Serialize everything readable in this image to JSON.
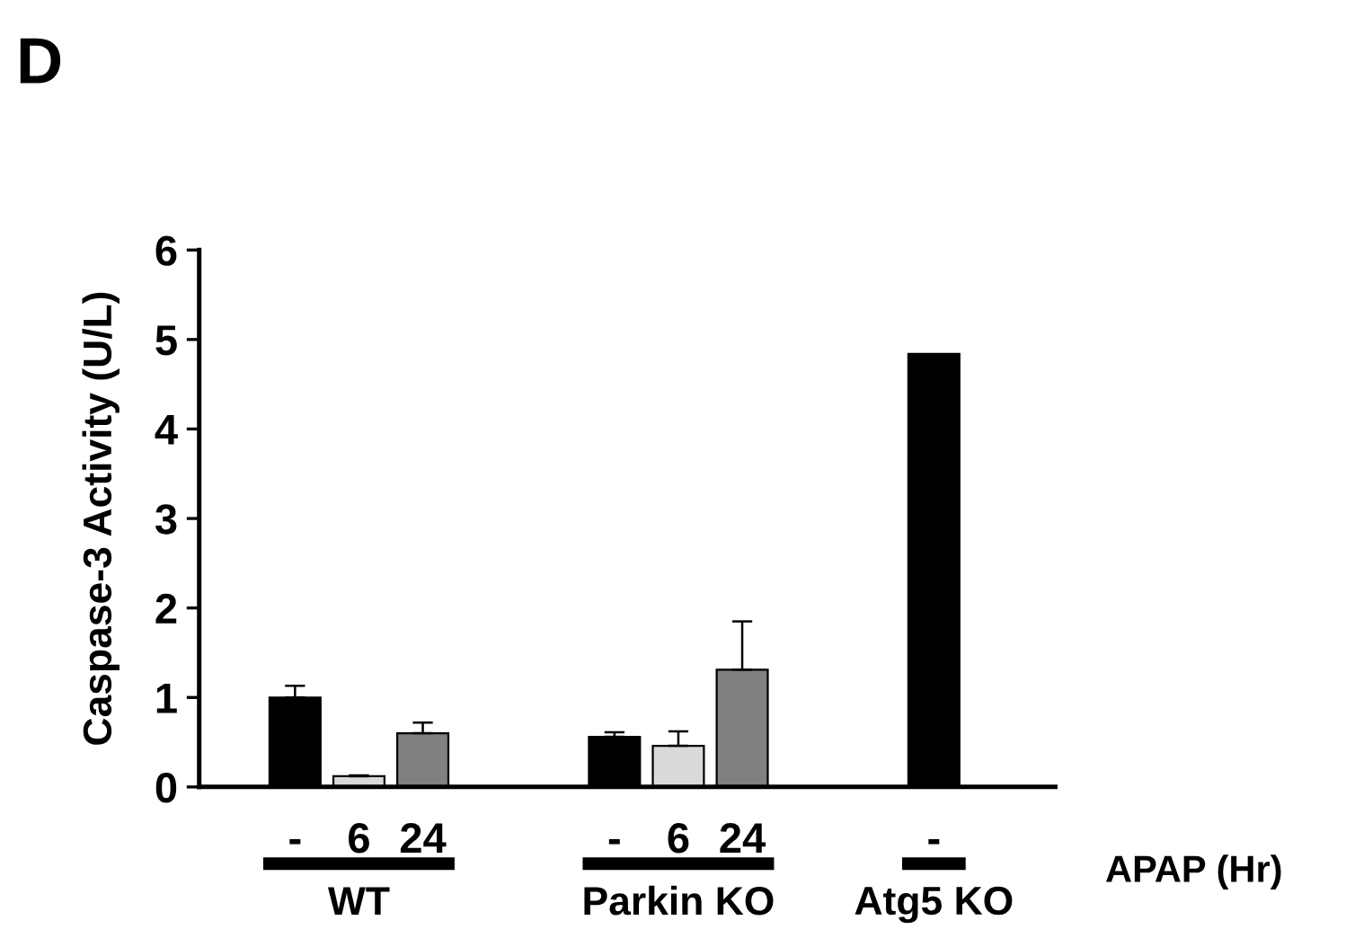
{
  "chart_data": {
    "type": "bar",
    "title": "D",
    "ylabel": "Caspase-3 Activity (U/L)",
    "xlabel": "APAP (Hr)",
    "categories": [
      "-",
      "6",
      "24",
      null,
      null,
      "-",
      "6",
      "24",
      null,
      null,
      "-"
    ],
    "values": [
      1.0,
      0.12,
      0.6,
      null,
      null,
      0.56,
      0.46,
      1.31,
      null,
      null,
      4.84
    ],
    "colors": [
      "#000000",
      "#d9d9d9",
      "#808080",
      null,
      null,
      "#000000",
      "#d9d9d9",
      "#808080",
      null,
      null,
      "#000000"
    ],
    "errors": [
      [
        1.0,
        1.13
      ],
      [
        0.12,
        0.13
      ],
      [
        0.6,
        0.72
      ],
      null,
      null,
      [
        0.56,
        0.61
      ],
      [
        0.46,
        0.62
      ],
      [
        1.31,
        1.85
      ],
      null,
      null,
      null
    ],
    "annotations": [
      "WT",
      "Parkin KO",
      "Atg5 KO"
    ],
    "ylim": [
      0,
      6
    ],
    "yticks": [
      0,
      1,
      2,
      3,
      4,
      5,
      6
    ],
    "grid": false,
    "legend": false
  }
}
